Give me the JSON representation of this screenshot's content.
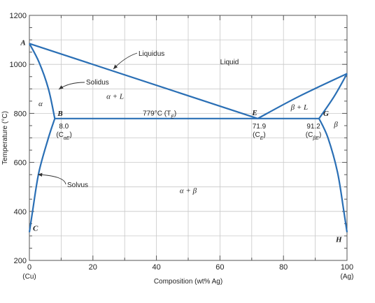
{
  "chart_data": {
    "type": "phase-diagram",
    "title": "",
    "xlabel": "Composition (wt% Ag)",
    "ylabel": "Temperature (°C)",
    "xlim": [
      0,
      100
    ],
    "ylim": [
      200,
      1200
    ],
    "x_ticks": [
      "0",
      "20",
      "40",
      "60",
      "80",
      "100"
    ],
    "y_ticks": [
      "200",
      "400",
      "600",
      "800",
      "1000",
      "1200"
    ],
    "x_end_labels": {
      "left": "(Cu)",
      "right": "(Ag)"
    },
    "grid": true,
    "colors": {
      "curve": "#2a6fb5",
      "grid": "#c8c8c8",
      "axis": "#555555"
    },
    "points": {
      "A": {
        "label": "A",
        "x": 0,
        "y": 1085
      },
      "B": {
        "label": "B",
        "x": 8.0,
        "y": 779
      },
      "C": {
        "label": "C",
        "x": 0,
        "y": 315
      },
      "E": {
        "label": "E",
        "x": 71.9,
        "y": 779
      },
      "G": {
        "label": "G",
        "x": 91.2,
        "y": 779
      },
      "H": {
        "label": "H",
        "x": 100,
        "y": 315
      },
      "Ag_melt": {
        "x": 100,
        "y": 962
      }
    },
    "curves": {
      "liquidus_left": [
        [
          0,
          1085
        ],
        [
          71.9,
          779
        ]
      ],
      "liquidus_right": [
        [
          71.9,
          779
        ],
        [
          85,
          870
        ],
        [
          100,
          962
        ]
      ],
      "solidus_alpha": [
        [
          0,
          1085
        ],
        [
          3,
          1010
        ],
        [
          6,
          900
        ],
        [
          8.0,
          779
        ]
      ],
      "solvus_alpha": [
        [
          8.0,
          779
        ],
        [
          6,
          700
        ],
        [
          3,
          560
        ],
        [
          1,
          400
        ],
        [
          0,
          315
        ]
      ],
      "solidus_beta": [
        [
          91.2,
          779
        ],
        [
          96,
          870
        ],
        [
          100,
          962
        ]
      ],
      "solvus_beta": [
        [
          91.2,
          779
        ],
        [
          94,
          700
        ],
        [
          97,
          560
        ],
        [
          99,
          400
        ],
        [
          100,
          315
        ]
      ],
      "eutectic_isotherm": [
        [
          8.0,
          779
        ],
        [
          91.2,
          779
        ]
      ]
    },
    "annotations": {
      "liquidus": "Liquidus",
      "solidus": "Solidus",
      "solvus": "Solvus",
      "liquid": "Liquid",
      "alpha": "α",
      "alpha_plus_L": "α + L",
      "beta_plus_L": "β + L",
      "beta": "β",
      "alpha_plus_beta": "α + β",
      "isotherm": "779°C (T",
      "isotherm_sub": "E",
      "isotherm_close": ")",
      "B_value": "8.0",
      "B_comp": "(C",
      "B_comp_sub": "αE",
      "E_value": "71.9",
      "E_comp": "(C",
      "E_comp_sub": "E",
      "G_value": "91.2",
      "G_comp": "(C",
      "G_comp_sub": "βE",
      "comp_close": ")"
    }
  }
}
